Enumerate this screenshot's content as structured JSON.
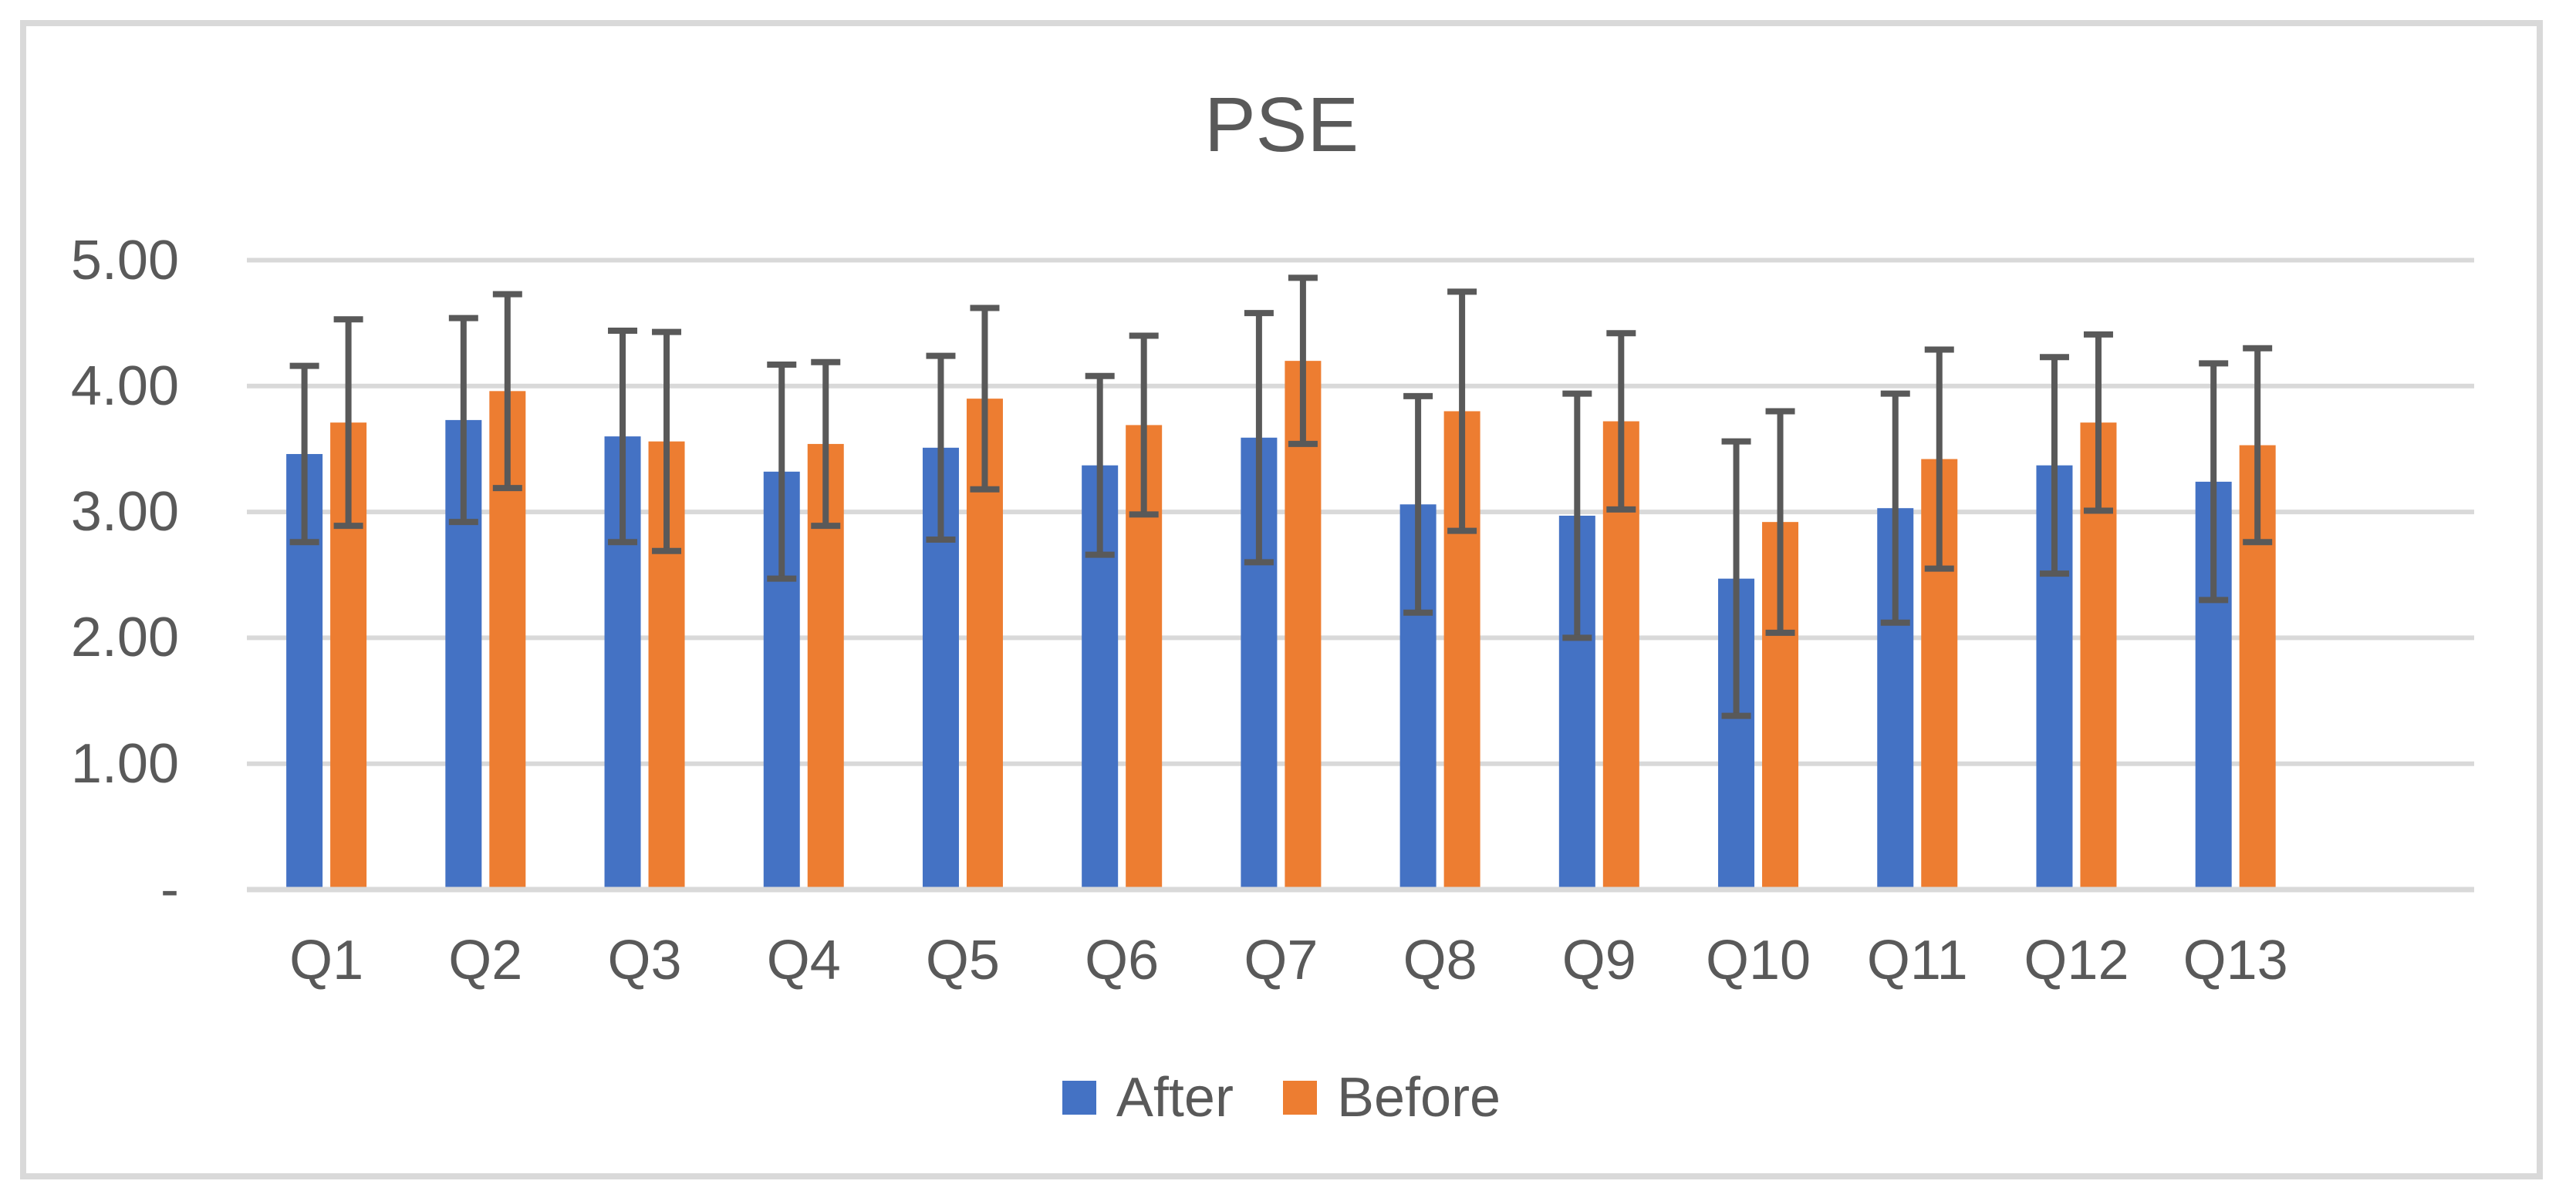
{
  "chart_data": {
    "type": "bar",
    "title": "PSE",
    "categories": [
      "Q1",
      "Q2",
      "Q3",
      "Q4",
      "Q5",
      "Q6",
      "Q7",
      "Q8",
      "Q9",
      "Q10",
      "Q11",
      "Q12",
      "Q13"
    ],
    "series": [
      {
        "name": "After",
        "color": "#4472C4",
        "values": [
          3.46,
          3.73,
          3.6,
          3.32,
          3.51,
          3.37,
          3.59,
          3.06,
          2.97,
          2.47,
          3.03,
          3.37,
          3.24
        ],
        "errors": [
          0.7,
          0.81,
          0.84,
          0.85,
          0.73,
          0.71,
          0.99,
          0.86,
          0.97,
          1.09,
          0.91,
          0.86,
          0.94
        ]
      },
      {
        "name": "Before",
        "color": "#ED7D31",
        "values": [
          3.71,
          3.96,
          3.56,
          3.54,
          3.9,
          3.69,
          4.2,
          3.8,
          3.72,
          2.92,
          3.42,
          3.71,
          3.53
        ],
        "errors": [
          0.82,
          0.77,
          0.87,
          0.65,
          0.72,
          0.71,
          0.66,
          0.95,
          0.7,
          0.88,
          0.87,
          0.7,
          0.77
        ]
      }
    ],
    "y_ticks": [
      {
        "label": "5.00",
        "value": 5
      },
      {
        "label": "4.00",
        "value": 4
      },
      {
        "label": "3.00",
        "value": 3
      },
      {
        "label": "2.00",
        "value": 2
      },
      {
        "label": "1.00",
        "value": 1
      },
      {
        "label": "-",
        "value": 0
      }
    ],
    "ylim": [
      0,
      5
    ],
    "xlabel": "",
    "ylabel": "",
    "grid": true,
    "legend_position": "bottom",
    "empty_trailing_slots": 1,
    "colors": {
      "text": "#595959",
      "gridline": "#D9D9D9",
      "error_bar": "#595959",
      "frame_border": "#D9D9D9",
      "background": "#FFFFFF"
    }
  }
}
